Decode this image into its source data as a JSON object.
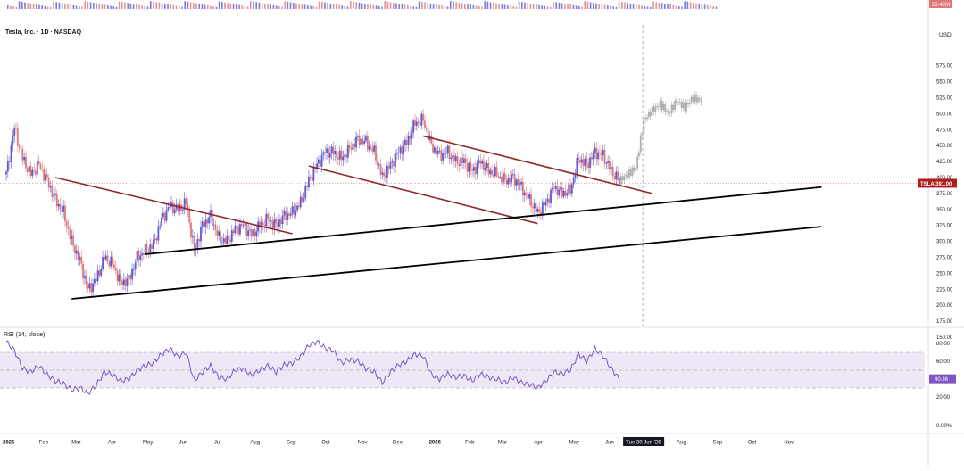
{
  "chart_data": [
    {
      "type": "candlestick",
      "title": "Tesla, Inc. · 1D · NASDAQ",
      "currency_label": "USD",
      "ylim": [
        150,
        600
      ],
      "y_tick_labels": [
        "575.00",
        "550.00",
        "525.00",
        "500.00",
        "475.00",
        "450.00",
        "425.00",
        "400.00",
        "375.00",
        "350.00",
        "325.00",
        "300.00",
        "275.00",
        "250.00",
        "225.00",
        "200.00",
        "175.00",
        "150.00"
      ],
      "x_tick_labels": [
        "2025",
        "Feb",
        "Mar",
        "Apr",
        "May",
        "Jun",
        "Jul",
        "Aug",
        "Sep",
        "Oct",
        "Nov",
        "Dec",
        "2026",
        "Feb",
        "Mar",
        "Apr",
        "May",
        "Jun",
        "Tue 30 Jun '26",
        "Aug",
        "Sep",
        "Oct",
        "Nov"
      ],
      "last_price": {
        "symbol": "TSLA",
        "label": "391.00",
        "value": 391.0
      },
      "volume_label": "63.42M",
      "volume_top_label": "0.00",
      "price_path": [
        {
          "date": "2025-01-01",
          "close": 405
        },
        {
          "date": "2025-01-08",
          "close": 478
        },
        {
          "date": "2025-01-15",
          "close": 430
        },
        {
          "date": "2025-01-22",
          "close": 405
        },
        {
          "date": "2025-01-29",
          "close": 420
        },
        {
          "date": "2025-02-05",
          "close": 395
        },
        {
          "date": "2025-02-12",
          "close": 365
        },
        {
          "date": "2025-02-19",
          "close": 345
        },
        {
          "date": "2025-02-26",
          "close": 300
        },
        {
          "date": "2025-03-05",
          "close": 270
        },
        {
          "date": "2025-03-12",
          "close": 225
        },
        {
          "date": "2025-03-19",
          "close": 240
        },
        {
          "date": "2025-03-26",
          "close": 275
        },
        {
          "date": "2025-04-02",
          "close": 265
        },
        {
          "date": "2025-04-09",
          "close": 235
        },
        {
          "date": "2025-04-16",
          "close": 240
        },
        {
          "date": "2025-04-23",
          "close": 275
        },
        {
          "date": "2025-04-30",
          "close": 285
        },
        {
          "date": "2025-05-07",
          "close": 295
        },
        {
          "date": "2025-05-14",
          "close": 335
        },
        {
          "date": "2025-05-21",
          "close": 355
        },
        {
          "date": "2025-05-28",
          "close": 350
        },
        {
          "date": "2025-06-04",
          "close": 360
        },
        {
          "date": "2025-06-11",
          "close": 285
        },
        {
          "date": "2025-06-18",
          "close": 325
        },
        {
          "date": "2025-06-25",
          "close": 340
        },
        {
          "date": "2025-07-02",
          "close": 305
        },
        {
          "date": "2025-07-09",
          "close": 300
        },
        {
          "date": "2025-07-16",
          "close": 320
        },
        {
          "date": "2025-07-23",
          "close": 325
        },
        {
          "date": "2025-07-30",
          "close": 310
        },
        {
          "date": "2025-08-06",
          "close": 325
        },
        {
          "date": "2025-08-13",
          "close": 335
        },
        {
          "date": "2025-08-20",
          "close": 325
        },
        {
          "date": "2025-08-27",
          "close": 340
        },
        {
          "date": "2025-09-03",
          "close": 345
        },
        {
          "date": "2025-09-10",
          "close": 360
        },
        {
          "date": "2025-09-17",
          "close": 395
        },
        {
          "date": "2025-09-24",
          "close": 420
        },
        {
          "date": "2025-10-01",
          "close": 440
        },
        {
          "date": "2025-10-08",
          "close": 440
        },
        {
          "date": "2025-10-15",
          "close": 430
        },
        {
          "date": "2025-10-22",
          "close": 445
        },
        {
          "date": "2025-10-29",
          "close": 460
        },
        {
          "date": "2025-11-05",
          "close": 455
        },
        {
          "date": "2025-11-12",
          "close": 440
        },
        {
          "date": "2025-11-19",
          "close": 400
        },
        {
          "date": "2025-11-26",
          "close": 420
        },
        {
          "date": "2025-12-03",
          "close": 440
        },
        {
          "date": "2025-12-10",
          "close": 455
        },
        {
          "date": "2025-12-17",
          "close": 485
        },
        {
          "date": "2025-12-24",
          "close": 490
        },
        {
          "date": "2025-12-31",
          "close": 450
        },
        {
          "date": "2026-01-07",
          "close": 435
        },
        {
          "date": "2026-01-14",
          "close": 440
        },
        {
          "date": "2026-01-21",
          "close": 425
        },
        {
          "date": "2026-01-28",
          "close": 425
        },
        {
          "date": "2026-02-04",
          "close": 410
        },
        {
          "date": "2026-02-11",
          "close": 425
        },
        {
          "date": "2026-02-18",
          "close": 410
        },
        {
          "date": "2026-02-25",
          "close": 405
        },
        {
          "date": "2026-03-04",
          "close": 395
        },
        {
          "date": "2026-03-11",
          "close": 400
        },
        {
          "date": "2026-03-18",
          "close": 385
        },
        {
          "date": "2026-03-25",
          "close": 365
        },
        {
          "date": "2026-04-01",
          "close": 345
        },
        {
          "date": "2026-04-08",
          "close": 360
        },
        {
          "date": "2026-04-15",
          "close": 385
        },
        {
          "date": "2026-04-22",
          "close": 375
        },
        {
          "date": "2026-04-29",
          "close": 380
        },
        {
          "date": "2026-05-06",
          "close": 430
        },
        {
          "date": "2026-05-13",
          "close": 420
        },
        {
          "date": "2026-05-20",
          "close": 440
        },
        {
          "date": "2026-05-27",
          "close": 435
        },
        {
          "date": "2026-06-03",
          "close": 410
        },
        {
          "date": "2026-06-10",
          "close": 395
        }
      ],
      "projection_path": [
        {
          "date": "2026-06-10",
          "close": 395
        },
        {
          "date": "2026-06-17",
          "close": 405
        },
        {
          "date": "2026-06-24",
          "close": 415
        },
        {
          "date": "2026-07-01",
          "close": 490
        },
        {
          "date": "2026-07-08",
          "close": 505
        },
        {
          "date": "2026-07-15",
          "close": 515
        },
        {
          "date": "2026-07-22",
          "close": 500
        },
        {
          "date": "2026-07-29",
          "close": 520
        },
        {
          "date": "2026-08-05",
          "close": 510
        },
        {
          "date": "2026-08-12",
          "close": 525
        },
        {
          "date": "2026-08-19",
          "close": 520
        }
      ],
      "trend_lines": [
        {
          "color": "#8b2a2a",
          "from": {
            "date": "2025-02-12",
            "value": 400
          },
          "to": {
            "date": "2025-09-03",
            "value": 312
          }
        },
        {
          "color": "#8b2a2a",
          "from": {
            "date": "2025-09-17",
            "value": 418
          },
          "to": {
            "date": "2026-04-01",
            "value": 328
          }
        },
        {
          "color": "#8b2a2a",
          "from": {
            "date": "2025-12-24",
            "value": 465
          },
          "to": {
            "date": "2026-07-08",
            "value": 375
          }
        },
        {
          "color": "#000000",
          "from": {
            "date": "2025-04-30",
            "value": 280
          },
          "to": {
            "date": "2026-11-30",
            "value": 385
          }
        },
        {
          "color": "#000000",
          "from": {
            "date": "2025-02-26",
            "value": 210
          },
          "to": {
            "date": "2026-11-30",
            "value": 323
          }
        }
      ],
      "projection_marker_date": "2026-06-30",
      "colors": {
        "up": "#5b5bd6",
        "down": "#e0787a",
        "price_label_bg": "#b01c1c",
        "rsi_line": "#7e57c2",
        "rsi_band": "#ede7f6",
        "projection": "#b0b0b0"
      }
    },
    {
      "type": "line",
      "title": "RSI (14, close)",
      "ylim": [
        0,
        90
      ],
      "y_tick_labels": [
        "80.00",
        "60.00",
        "40.00",
        "20.00",
        "0.00%"
      ],
      "band": [
        30,
        70
      ],
      "midline": 50,
      "current_label": "40.36",
      "current_value": 40.36,
      "rsi_path": [
        {
          "date": "2025-01-01",
          "rsi": 82
        },
        {
          "date": "2025-01-08",
          "rsi": 72
        },
        {
          "date": "2025-01-15",
          "rsi": 52
        },
        {
          "date": "2025-01-22",
          "rsi": 48
        },
        {
          "date": "2025-01-29",
          "rsi": 55
        },
        {
          "date": "2025-02-05",
          "rsi": 45
        },
        {
          "date": "2025-02-12",
          "rsi": 38
        },
        {
          "date": "2025-02-19",
          "rsi": 35
        },
        {
          "date": "2025-02-26",
          "rsi": 28
        },
        {
          "date": "2025-03-05",
          "rsi": 30
        },
        {
          "date": "2025-03-12",
          "rsi": 24
        },
        {
          "date": "2025-03-19",
          "rsi": 33
        },
        {
          "date": "2025-03-26",
          "rsi": 48
        },
        {
          "date": "2025-04-02",
          "rsi": 45
        },
        {
          "date": "2025-04-09",
          "rsi": 38
        },
        {
          "date": "2025-04-16",
          "rsi": 40
        },
        {
          "date": "2025-04-23",
          "rsi": 50
        },
        {
          "date": "2025-04-30",
          "rsi": 55
        },
        {
          "date": "2025-05-07",
          "rsi": 58
        },
        {
          "date": "2025-05-14",
          "rsi": 68
        },
        {
          "date": "2025-05-21",
          "rsi": 74
        },
        {
          "date": "2025-05-28",
          "rsi": 65
        },
        {
          "date": "2025-06-04",
          "rsi": 70
        },
        {
          "date": "2025-06-11",
          "rsi": 38
        },
        {
          "date": "2025-06-18",
          "rsi": 48
        },
        {
          "date": "2025-06-25",
          "rsi": 55
        },
        {
          "date": "2025-07-02",
          "rsi": 42
        },
        {
          "date": "2025-07-09",
          "rsi": 40
        },
        {
          "date": "2025-07-16",
          "rsi": 50
        },
        {
          "date": "2025-07-23",
          "rsi": 52
        },
        {
          "date": "2025-07-30",
          "rsi": 44
        },
        {
          "date": "2025-08-06",
          "rsi": 50
        },
        {
          "date": "2025-08-13",
          "rsi": 55
        },
        {
          "date": "2025-08-20",
          "rsi": 48
        },
        {
          "date": "2025-08-27",
          "rsi": 56
        },
        {
          "date": "2025-09-03",
          "rsi": 58
        },
        {
          "date": "2025-09-10",
          "rsi": 65
        },
        {
          "date": "2025-09-17",
          "rsi": 78
        },
        {
          "date": "2025-09-24",
          "rsi": 82
        },
        {
          "date": "2025-10-01",
          "rsi": 75
        },
        {
          "date": "2025-10-08",
          "rsi": 72
        },
        {
          "date": "2025-10-15",
          "rsi": 58
        },
        {
          "date": "2025-10-22",
          "rsi": 62
        },
        {
          "date": "2025-10-29",
          "rsi": 60
        },
        {
          "date": "2025-11-05",
          "rsi": 52
        },
        {
          "date": "2025-11-12",
          "rsi": 48
        },
        {
          "date": "2025-11-19",
          "rsi": 36
        },
        {
          "date": "2025-11-26",
          "rsi": 48
        },
        {
          "date": "2025-12-03",
          "rsi": 56
        },
        {
          "date": "2025-12-10",
          "rsi": 60
        },
        {
          "date": "2025-12-17",
          "rsi": 68
        },
        {
          "date": "2025-12-24",
          "rsi": 66
        },
        {
          "date": "2025-12-31",
          "rsi": 45
        },
        {
          "date": "2026-01-07",
          "rsi": 40
        },
        {
          "date": "2026-01-14",
          "rsi": 46
        },
        {
          "date": "2026-01-21",
          "rsi": 42
        },
        {
          "date": "2026-01-28",
          "rsi": 44
        },
        {
          "date": "2026-02-04",
          "rsi": 38
        },
        {
          "date": "2026-02-11",
          "rsi": 46
        },
        {
          "date": "2026-02-18",
          "rsi": 42
        },
        {
          "date": "2026-02-25",
          "rsi": 40
        },
        {
          "date": "2026-03-04",
          "rsi": 36
        },
        {
          "date": "2026-03-11",
          "rsi": 42
        },
        {
          "date": "2026-03-18",
          "rsi": 36
        },
        {
          "date": "2026-03-25",
          "rsi": 34
        },
        {
          "date": "2026-04-01",
          "rsi": 30
        },
        {
          "date": "2026-04-08",
          "rsi": 38
        },
        {
          "date": "2026-04-15",
          "rsi": 48
        },
        {
          "date": "2026-04-22",
          "rsi": 46
        },
        {
          "date": "2026-04-29",
          "rsi": 50
        },
        {
          "date": "2026-05-06",
          "rsi": 68
        },
        {
          "date": "2026-05-13",
          "rsi": 60
        },
        {
          "date": "2026-05-20",
          "rsi": 74
        },
        {
          "date": "2026-05-27",
          "rsi": 66
        },
        {
          "date": "2026-06-03",
          "rsi": 52
        },
        {
          "date": "2026-06-10",
          "rsi": 40
        }
      ]
    }
  ]
}
